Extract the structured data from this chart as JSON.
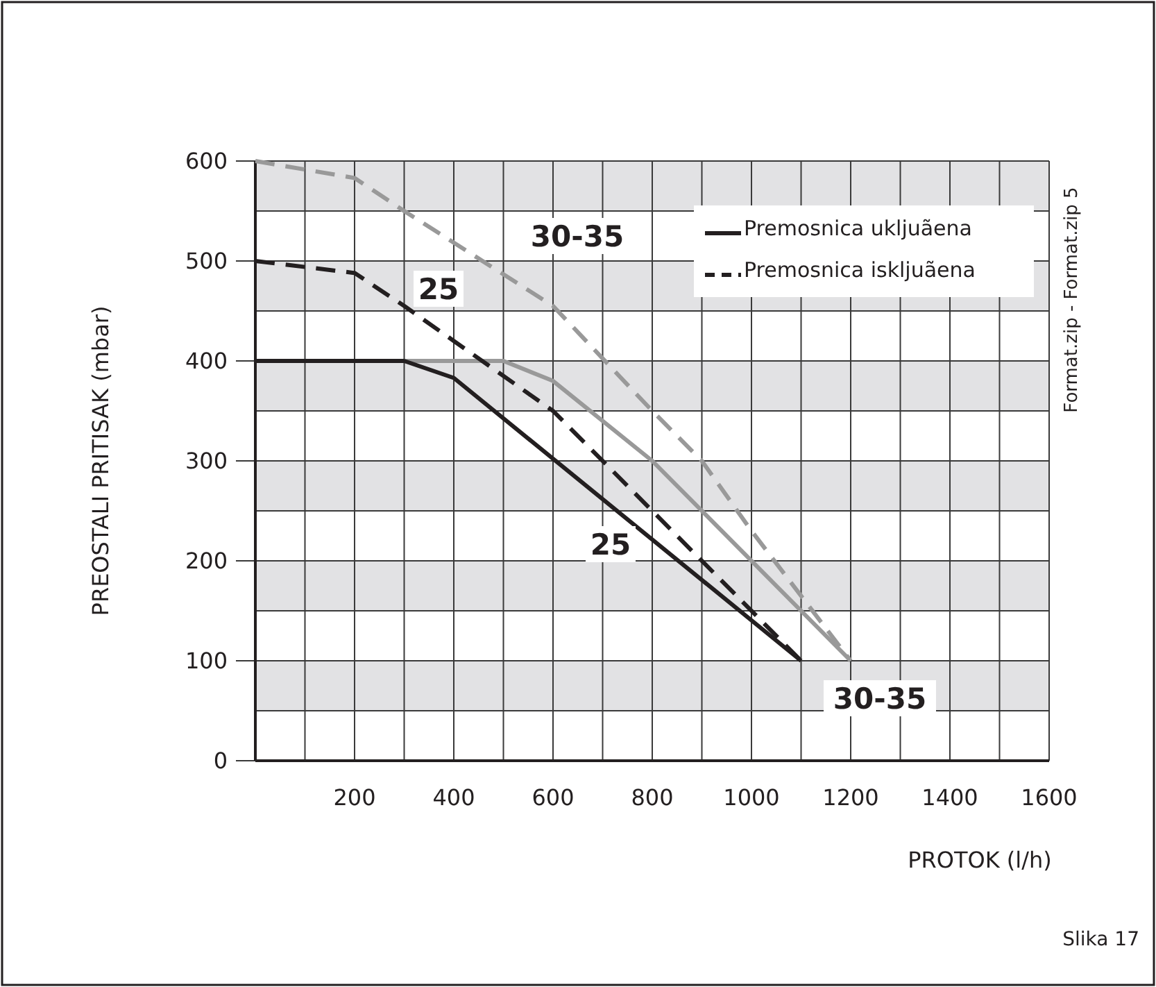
{
  "chart_data": {
    "type": "line",
    "xlabel": "PROTOK (l/h)",
    "ylabel": "PREOSTALI PRITISAK (mbar)",
    "xlim": [
      0,
      1600
    ],
    "ylim": [
      0,
      600
    ],
    "xticks": [
      {
        "value": 0,
        "label": null
      },
      {
        "value": 100,
        "label": null
      },
      200,
      {
        "value": 300,
        "label": null
      },
      400,
      {
        "value": 500,
        "label": null
      },
      600,
      {
        "value": 700,
        "label": null
      },
      800,
      {
        "value": 900,
        "label": null
      },
      1000,
      {
        "value": 1100,
        "label": null
      },
      1200,
      {
        "value": 1300,
        "label": null
      },
      1400,
      {
        "value": 1500,
        "label": null
      },
      1600
    ],
    "yticks": [
      {
        "value": 0,
        "label": "0"
      },
      {
        "value": 50,
        "label": null
      },
      100,
      {
        "value": 150,
        "label": null
      },
      200,
      {
        "value": 250,
        "label": null
      },
      300,
      {
        "value": 350,
        "label": null
      },
      400,
      {
        "value": 450,
        "label": null
      },
      500,
      {
        "value": 550,
        "label": null
      },
      600
    ],
    "grid": true,
    "legend": "top right",
    "series": [
      {
        "color": "#999999",
        "line_style": "solid",
        "x": [
          300,
          500,
          600,
          800,
          1200
        ],
        "values": [
          400,
          400,
          380,
          300,
          100
        ]
      },
      {
        "color": "#999999",
        "line_style": "dashed",
        "x": [
          0,
          200,
          300,
          600,
          800,
          900,
          1000,
          1200
        ],
        "values": [
          600,
          583,
          550,
          455,
          350,
          300,
          230,
          100
        ]
      },
      {
        "name": "Premosnica ukljuãena",
        "color": "#231f20",
        "line_style": "solid",
        "x": [
          0,
          300,
          400,
          1100
        ],
        "values": [
          400,
          400,
          383,
          100
        ]
      },
      {
        "name": "Premosnica iskljuãena",
        "color": "#231f20",
        "line_style": "dashed",
        "x": [
          0,
          200,
          300,
          400,
          600,
          1100
        ],
        "values": [
          500,
          488,
          455,
          420,
          350,
          100
        ]
      }
    ],
    "annotations": [
      "30-35",
      "25",
      "25",
      "30-35",
      "Format.zip - Format.zip 5",
      "Slika 17"
    ]
  }
}
